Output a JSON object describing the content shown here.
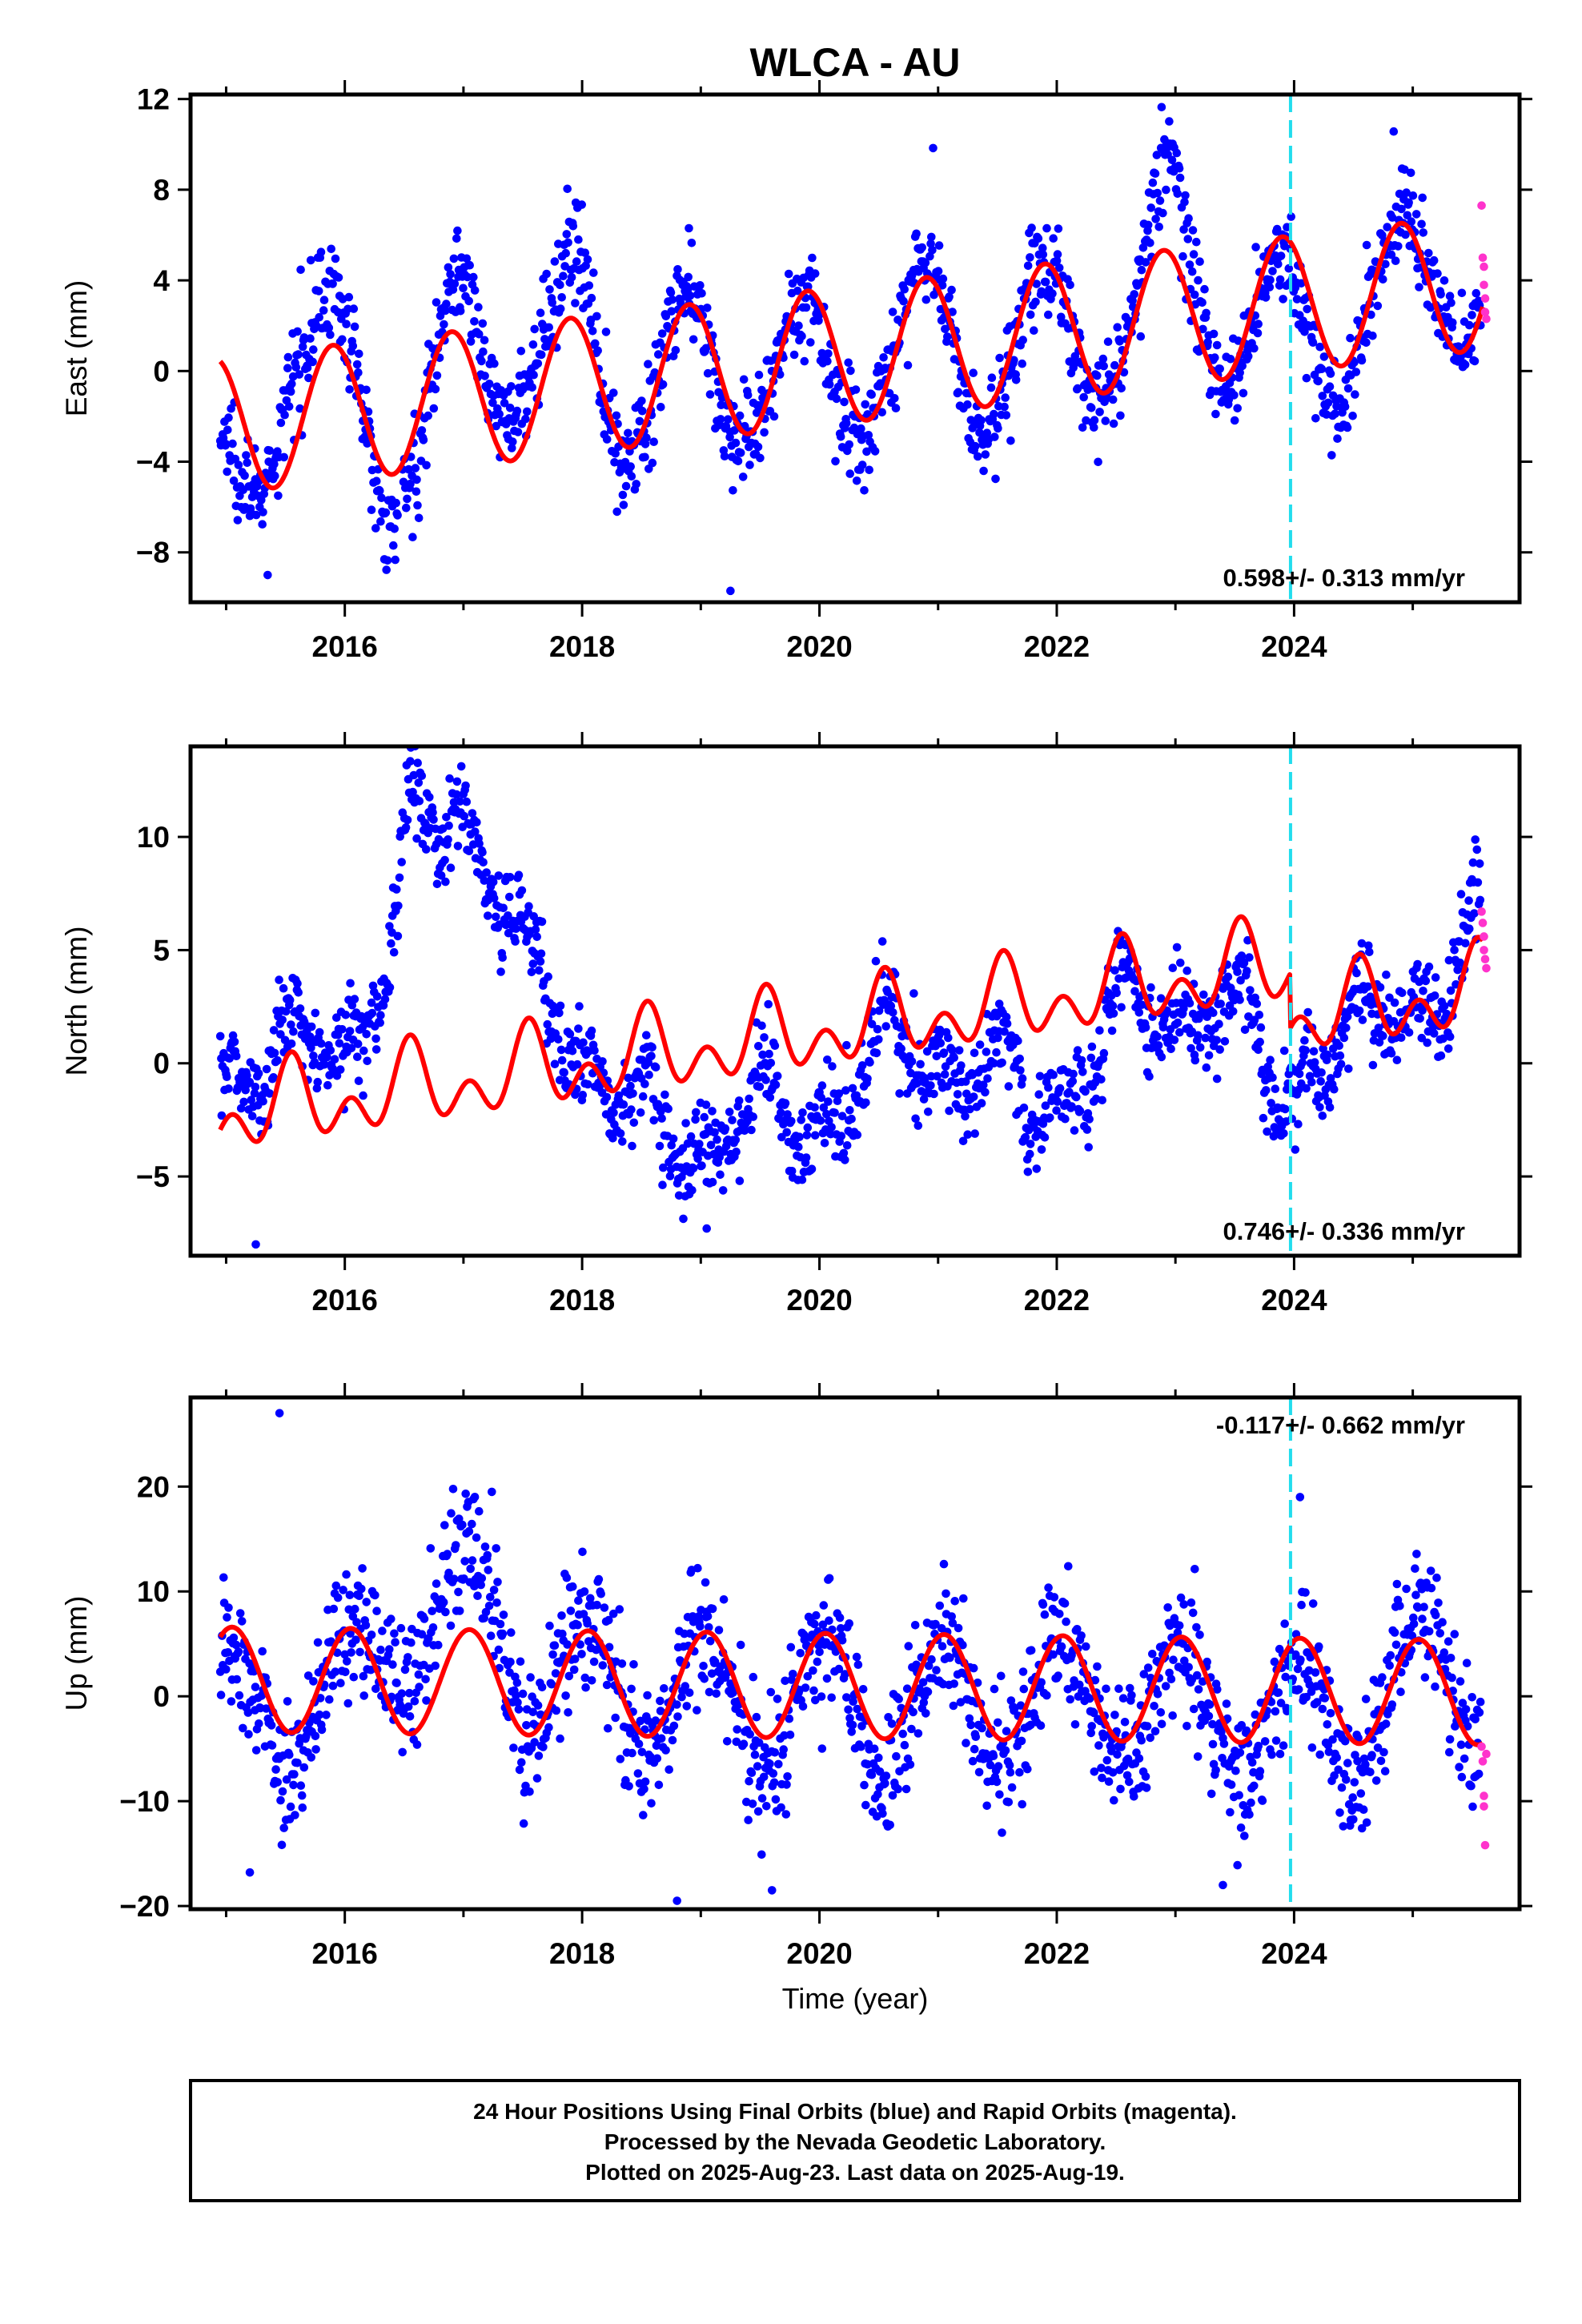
{
  "title": "WLCA - AU",
  "colors": {
    "final_orbits": "#0000ff",
    "rapid_orbits": "#ff33cc",
    "model_fit": "#ff0000",
    "event_line": "#22ddee"
  },
  "xlabel": "Time (year)",
  "footer": {
    "line1": "24 Hour Positions Using Final Orbits (blue) and Rapid Orbits (magenta).",
    "line2": "Processed by the Nevada Geodetic Laboratory.",
    "line3": "Plotted on 2025-Aug-23. Last data on 2025-Aug-19."
  },
  "chart_data": [
    {
      "type": "scatter",
      "ylabel": "East (mm)",
      "rate_label": "0.598+/- 0.313 mm/yr",
      "xlim": [
        2014.7,
        2025.9
      ],
      "ylim": [
        -10.2,
        12.2
      ],
      "xticks": [
        2016,
        2018,
        2020,
        2022,
        2024
      ],
      "yticks": [
        -8,
        -4,
        0,
        4,
        8,
        12
      ],
      "event_line_x": 2023.97,
      "model": {
        "offset": -2.4,
        "trend": 0.598,
        "annual_amp": 3.0,
        "annual_peak": 2015.9,
        "semi_amp": 0.0,
        "semi_peak": 2015.9,
        "steps": []
      },
      "residual": {
        "x": [
          2014.95,
          2015.3,
          2015.55,
          2015.9,
          2016.35,
          2016.65,
          2016.95,
          2017.3,
          2017.65,
          2017.95,
          2018.3,
          2018.6,
          2018.9,
          2019.2,
          2019.5,
          2019.9,
          2020.2,
          2020.5,
          2020.9,
          2021.3,
          2021.6,
          2021.95,
          2022.3,
          2022.6,
          2022.95,
          2023.3,
          2023.55,
          2023.95,
          2024.3,
          2024.6,
          2024.95,
          2025.3,
          2025.6
        ],
        "y": [
          -3.5,
          -1.0,
          3.5,
          2.5,
          -2.0,
          -1.5,
          3.0,
          1.5,
          2.0,
          3.0,
          -1.0,
          0.0,
          1.0,
          -1.5,
          0.5,
          -0.5,
          -1.5,
          0.5,
          1.0,
          -1.5,
          -0.5,
          0.0,
          -1.0,
          0.5,
          4.5,
          0.5,
          -0.5,
          -1.0,
          -2.5,
          0.0,
          0.5,
          0.5,
          0.5
        ]
      },
      "noise": 1.1,
      "outliers": [
        {
          "x": 2019.25,
          "y": -9.7
        },
        {
          "x": 2018.9,
          "y": 6.3
        },
        {
          "x": 2015.35,
          "y": -9.0
        }
      ],
      "rapid": [
        {
          "x": 2025.58,
          "y": 7.3
        },
        {
          "x": 2025.59,
          "y": 5.0
        },
        {
          "x": 2025.6,
          "y": 4.6
        },
        {
          "x": 2025.6,
          "y": 3.8
        },
        {
          "x": 2025.61,
          "y": 3.2
        },
        {
          "x": 2025.61,
          "y": 2.6
        },
        {
          "x": 2025.62,
          "y": 2.3
        }
      ]
    },
    {
      "type": "scatter",
      "ylabel": "North (mm)",
      "rate_label": "0.746+/- 0.336 mm/yr",
      "xlim": [
        2014.7,
        2025.9
      ],
      "ylim": [
        -8.5,
        14.0
      ],
      "xticks": [
        2016,
        2018,
        2020,
        2022,
        2024
      ],
      "yticks": [
        -5,
        0,
        5,
        10
      ],
      "event_line_x": 2023.97,
      "model": {
        "offset": -2.3,
        "trend": 0.746,
        "annual_amp": 1.2,
        "annual_peak": 2015.55,
        "semi_amp": 1.2,
        "semi_peak": 2015.55,
        "steps": [
          {
            "x": 2023.97,
            "dy": -2.4
          }
        ]
      },
      "residual": {
        "x": [
          2014.95,
          2015.25,
          2015.55,
          2015.85,
          2016.1,
          2016.35,
          2016.55,
          2016.8,
          2017.0,
          2017.3,
          2017.6,
          2017.9,
          2018.2,
          2018.6,
          2019.0,
          2019.4,
          2019.8,
          2020.2,
          2020.6,
          2021.0,
          2021.4,
          2021.8,
          2022.2,
          2022.6,
          2023.0,
          2023.3,
          2023.6,
          2023.9,
          2024.1,
          2024.4,
          2024.8,
          2025.2,
          2025.6
        ],
        "y": [
          2.5,
          2.0,
          2.0,
          3.0,
          3.5,
          5.5,
          11.0,
          12.0,
          12.5,
          8.0,
          3.5,
          1.5,
          -0.5,
          -3.5,
          -4.0,
          -3.0,
          -4.0,
          -3.5,
          -1.0,
          -2.0,
          -2.5,
          -5.0,
          -3.5,
          -1.0,
          -1.0,
          -1.5,
          -2.5,
          -5.5,
          -1.5,
          -2.0,
          0.0,
          0.0,
          3.0
        ]
      },
      "noise": 1.0,
      "outliers": [
        {
          "x": 2015.25,
          "y": -8.0
        },
        {
          "x": 2019.05,
          "y": -7.3
        }
      ],
      "rapid": [
        {
          "x": 2025.58,
          "y": 6.7
        },
        {
          "x": 2025.59,
          "y": 6.2
        },
        {
          "x": 2025.6,
          "y": 5.6
        },
        {
          "x": 2025.6,
          "y": 5.0
        },
        {
          "x": 2025.61,
          "y": 4.6
        },
        {
          "x": 2025.62,
          "y": 4.2
        }
      ]
    },
    {
      "type": "scatter",
      "ylabel": "Up (mm)",
      "rate_label": "-0.117+/- 0.662 mm/yr",
      "xlim": [
        2014.7,
        2025.9
      ],
      "ylim": [
        -20.3,
        28.5
      ],
      "xticks": [
        2016,
        2018,
        2020,
        2022,
        2024
      ],
      "yticks": [
        -20,
        -10,
        0,
        10,
        20
      ],
      "event_line_x": 2023.97,
      "model": {
        "offset": 1.6,
        "trend": -0.117,
        "annual_amp": 5.0,
        "annual_peak": 2016.05,
        "semi_amp": 0.0,
        "semi_peak": 2016.05,
        "steps": []
      },
      "residual": {
        "x": [
          2015.0,
          2015.5,
          2016.0,
          2016.5,
          2017.0,
          2017.5,
          2018.0,
          2018.5,
          2019.0,
          2019.5,
          2020.0,
          2020.5,
          2021.0,
          2021.5,
          2022.0,
          2022.5,
          2023.0,
          2023.5,
          2024.0,
          2024.5,
          2025.0,
          2025.55
        ],
        "y": [
          -1.5,
          -4.0,
          0.0,
          4.0,
          10.0,
          0.0,
          2.0,
          -2.0,
          0.0,
          -3.0,
          0.0,
          -4.0,
          0.0,
          -3.0,
          0.0,
          -3.0,
          0.0,
          -4.0,
          -2.0,
          -5.0,
          4.0,
          0.0
        ]
      },
      "noise": 3.2,
      "outliers": [
        {
          "x": 2015.45,
          "y": 27.0
        },
        {
          "x": 2018.8,
          "y": -19.5
        },
        {
          "x": 2019.6,
          "y": -18.5
        },
        {
          "x": 2015.2,
          "y": -16.8
        },
        {
          "x": 2023.4,
          "y": -18.0
        },
        {
          "x": 2024.05,
          "y": 19.0
        }
      ],
      "rapid": [
        {
          "x": 2025.58,
          "y": -4.8
        },
        {
          "x": 2025.59,
          "y": -6.2
        },
        {
          "x": 2025.6,
          "y": -9.5
        },
        {
          "x": 2025.6,
          "y": -10.5
        },
        {
          "x": 2025.61,
          "y": -14.2
        },
        {
          "x": 2025.62,
          "y": -5.5
        }
      ]
    }
  ]
}
